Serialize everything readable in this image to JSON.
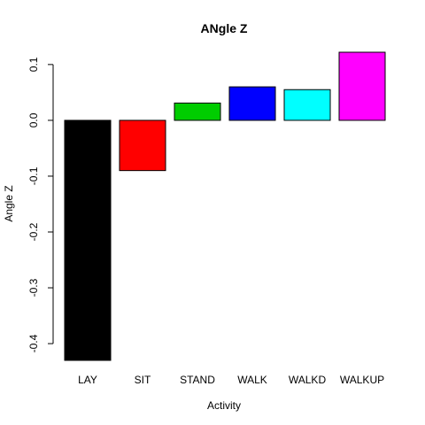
{
  "chart_data": {
    "type": "bar",
    "title": "ANgle Z",
    "xlabel": "Activity",
    "ylabel": "Angle Z",
    "categories": [
      "LAY",
      "SIT",
      "STAND",
      "WALK",
      "WALKD",
      "WALKUP"
    ],
    "values": [
      -0.43,
      -0.09,
      0.031,
      0.06,
      0.055,
      0.122
    ],
    "colors": [
      "#000000",
      "#FF0000",
      "#00CD00",
      "#0000FF",
      "#00FFFF",
      "#FF00FF"
    ],
    "yticks": [
      -0.4,
      -0.3,
      -0.2,
      -0.1,
      0.0,
      0.1
    ],
    "ytick_labels": [
      "-0.4",
      "-0.3",
      "-0.2",
      "-0.1",
      "0.0",
      "0.1"
    ],
    "ylim": [
      -0.43,
      0.122
    ],
    "grid": false,
    "legend": "none"
  }
}
